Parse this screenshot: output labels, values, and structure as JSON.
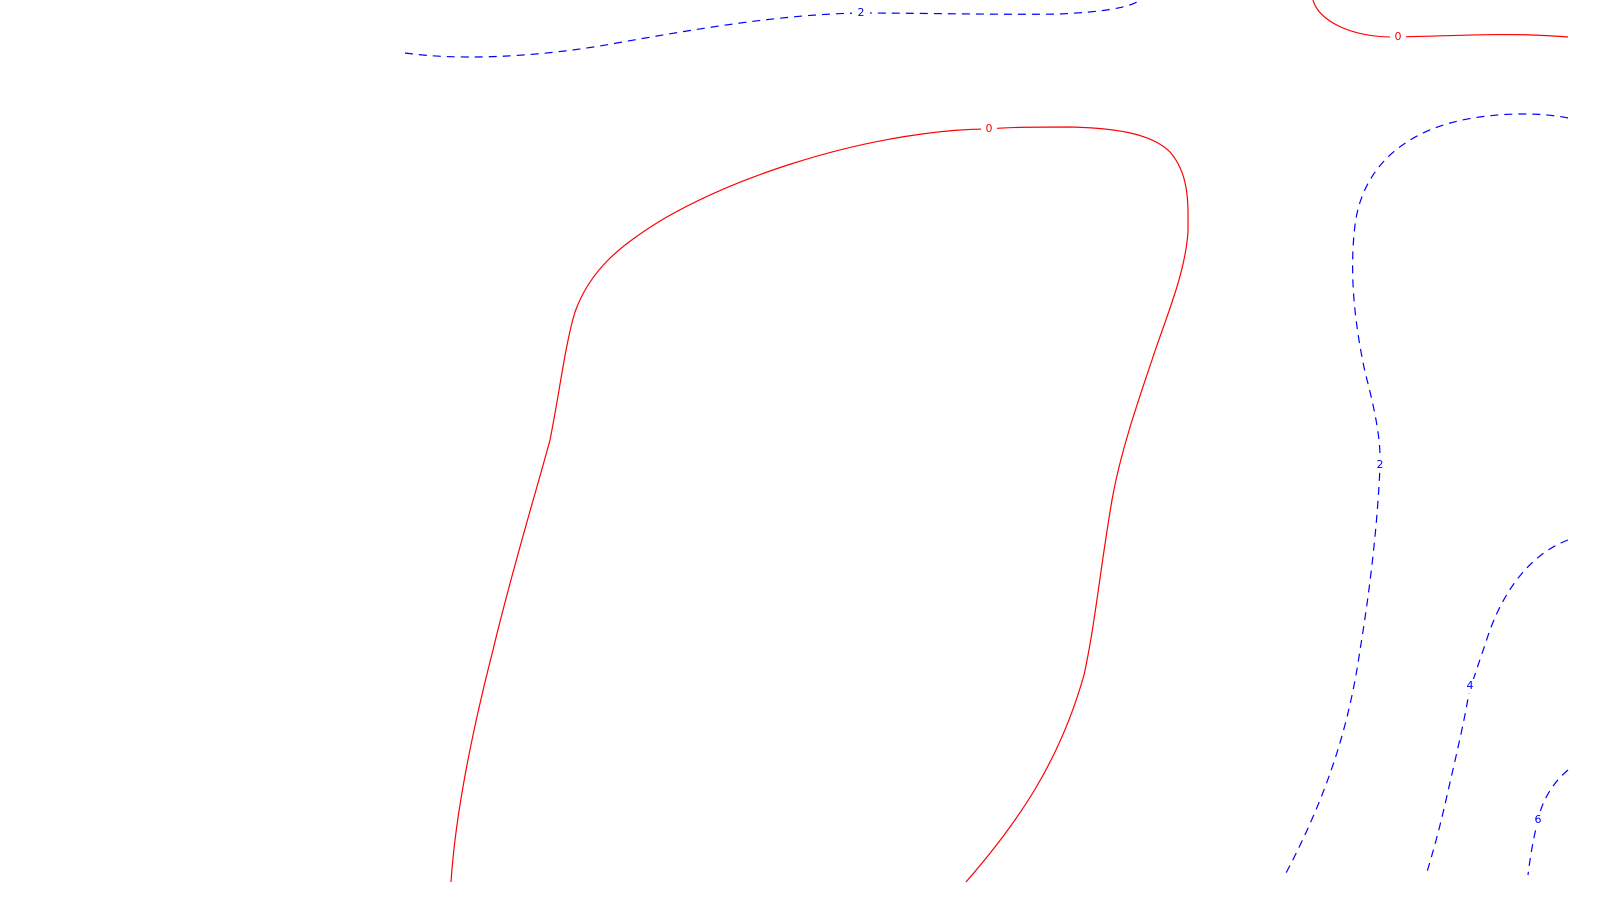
{
  "map": {
    "title": "",
    "background_color": "#ffffff",
    "colors": {
      "zero_contour": "#ff0000",
      "positive_contour": "#0000ff"
    },
    "contours": [
      {
        "id": "contour-2-top",
        "level": 2,
        "label": "2",
        "style": "dashed",
        "color": "#0000ff"
      },
      {
        "id": "contour-0-top-right",
        "level": 0,
        "label": "0",
        "style": "solid",
        "color": "#ff0000"
      },
      {
        "id": "contour-0-main",
        "level": 0,
        "label": "0",
        "style": "solid",
        "color": "#ff0000"
      },
      {
        "id": "contour-2-right",
        "level": 2,
        "label": "2",
        "style": "dashed",
        "color": "#0000ff"
      },
      {
        "id": "contour-4-right",
        "level": 4,
        "label": "4",
        "style": "dashed",
        "color": "#0000ff"
      },
      {
        "id": "contour-6-right",
        "level": 6,
        "label": "6",
        "style": "dashed",
        "color": "#0000ff"
      }
    ]
  }
}
